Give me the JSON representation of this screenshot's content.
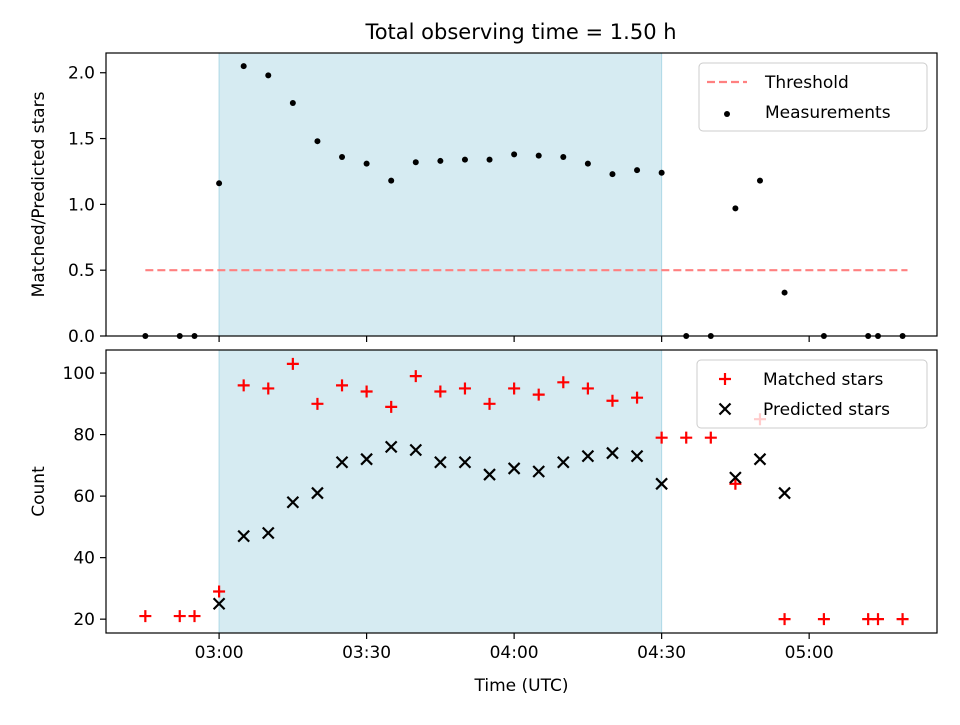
{
  "chart_data": [
    {
      "type": "scatter",
      "title": "Total observing time = 1.50 h",
      "xlabel": "",
      "ylabel": "Matched/Predicted stars",
      "xlim": [
        "02:37",
        "05:26"
      ],
      "ylim": [
        0,
        2.15
      ],
      "x_ticks": [
        "03:00",
        "03:30",
        "04:00",
        "04:30",
        "05:00"
      ],
      "x_tick_labels_shown": false,
      "y_ticks": [
        0.0,
        0.5,
        1.0,
        1.5,
        2.0
      ],
      "y_tick_labels": [
        "0.0",
        "0.5",
        "1.0",
        "1.5",
        "2.0"
      ],
      "grid": false,
      "legend_position": "upper right",
      "shaded_span": {
        "from": "03:00",
        "to": "04:30",
        "color": "#add8e6"
      },
      "series": [
        {
          "name": "Threshold",
          "style": "dashed-line",
          "color": "#ff8080",
          "x": [
            "02:45",
            "05:20"
          ],
          "y": [
            0.5,
            0.5
          ]
        },
        {
          "name": "Measurements",
          "style": "dot",
          "color": "#000000",
          "x": [
            "02:45",
            "02:52",
            "02:55",
            "03:00",
            "03:05",
            "03:10",
            "03:15",
            "03:20",
            "03:25",
            "03:30",
            "03:35",
            "03:40",
            "03:45",
            "03:50",
            "03:55",
            "04:00",
            "04:05",
            "04:10",
            "04:15",
            "04:20",
            "04:25",
            "04:30",
            "04:35",
            "04:40",
            "04:45",
            "04:50",
            "04:55",
            "05:03",
            "05:12",
            "05:14",
            "05:19"
          ],
          "y": [
            0,
            0,
            0,
            1.16,
            2.05,
            1.98,
            1.77,
            1.48,
            1.36,
            1.31,
            1.18,
            1.32,
            1.33,
            1.34,
            1.34,
            1.38,
            1.37,
            1.36,
            1.31,
            1.23,
            1.26,
            1.24,
            0,
            0,
            0.97,
            1.18,
            0.33,
            0,
            0,
            0,
            0
          ]
        }
      ]
    },
    {
      "type": "scatter",
      "title": "",
      "xlabel": "Time (UTC)",
      "ylabel": "Count",
      "xlim": [
        "02:37",
        "05:26"
      ],
      "ylim": [
        15.5,
        107.5
      ],
      "x_ticks": [
        "03:00",
        "03:30",
        "04:00",
        "04:30",
        "05:00"
      ],
      "x_tick_labels": [
        "03:00",
        "03:30",
        "04:00",
        "04:30",
        "05:00"
      ],
      "y_ticks": [
        20,
        40,
        60,
        80,
        100
      ],
      "y_tick_labels": [
        "20",
        "40",
        "60",
        "80",
        "100"
      ],
      "grid": false,
      "legend_position": "upper right",
      "shaded_span": {
        "from": "03:00",
        "to": "04:30",
        "color": "#add8e6"
      },
      "series": [
        {
          "name": "Matched stars",
          "marker": "plus",
          "color": "#ff0000",
          "x": [
            "02:45",
            "02:52",
            "02:55",
            "03:00",
            "03:05",
            "03:10",
            "03:15",
            "03:20",
            "03:25",
            "03:30",
            "03:35",
            "03:40",
            "03:45",
            "03:50",
            "03:55",
            "04:00",
            "04:05",
            "04:10",
            "04:15",
            "04:20",
            "04:25",
            "04:30",
            "04:35",
            "04:40",
            "04:45",
            "04:50",
            "04:55",
            "05:03",
            "05:12",
            "05:14",
            "05:19"
          ],
          "y": [
            21,
            21,
            21,
            29,
            96,
            95,
            103,
            90,
            96,
            94,
            89,
            99,
            94,
            95,
            90,
            95,
            93,
            97,
            95,
            91,
            92,
            79,
            79,
            79,
            64,
            85,
            20,
            20,
            20,
            20,
            20
          ]
        },
        {
          "name": "Predicted stars",
          "marker": "x",
          "color": "#000000",
          "x": [
            "03:00",
            "03:05",
            "03:10",
            "03:15",
            "03:20",
            "03:25",
            "03:30",
            "03:35",
            "03:40",
            "03:45",
            "03:50",
            "03:55",
            "04:00",
            "04:05",
            "04:10",
            "04:15",
            "04:20",
            "04:25",
            "04:30",
            "04:45",
            "04:50",
            "04:55"
          ],
          "y": [
            25,
            47,
            48,
            58,
            61,
            71,
            72,
            76,
            75,
            71,
            71,
            67,
            69,
            68,
            71,
            73,
            74,
            73,
            64,
            66,
            72,
            61
          ]
        }
      ]
    }
  ]
}
